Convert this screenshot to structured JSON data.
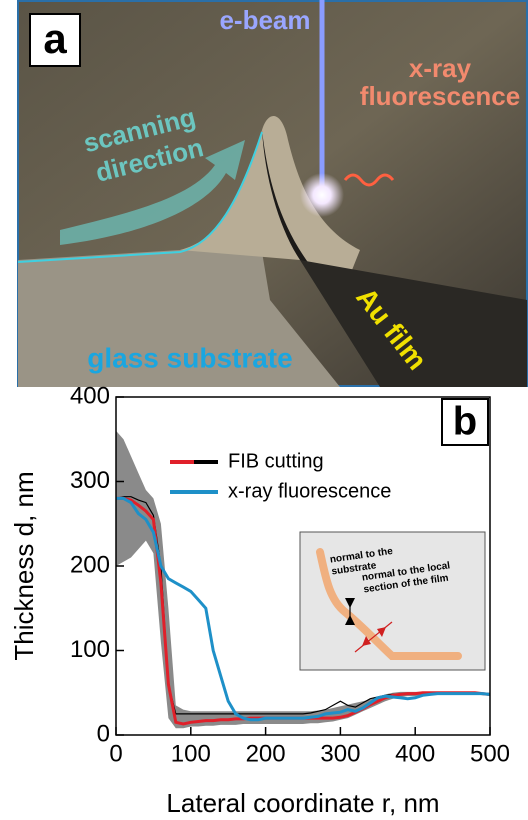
{
  "illustration": {
    "panel_label": "a",
    "beam_label": "e-beam",
    "fluorescence_label": [
      "x-ray",
      "fluorescence"
    ],
    "scan_label": [
      "scanning",
      "direction"
    ],
    "substrate_label": "glass substrate",
    "film_label": "Au film"
  },
  "chart_data": {
    "type": "line",
    "panel_label": "b",
    "x_label": "Lateral coordinate r, nm",
    "y_label": "Thickness d, nm",
    "xlim": [
      0,
      500
    ],
    "ylim": [
      0,
      400
    ],
    "xticks": [
      0,
      100,
      200,
      300,
      400,
      500
    ],
    "yticks": [
      0,
      100,
      200,
      300,
      400
    ],
    "x": [
      0,
      10,
      20,
      30,
      40,
      50,
      60,
      70,
      80,
      90,
      100,
      110,
      120,
      130,
      140,
      150,
      160,
      170,
      180,
      190,
      200,
      210,
      220,
      230,
      240,
      250,
      260,
      270,
      280,
      290,
      300,
      310,
      320,
      330,
      340,
      350,
      360,
      370,
      380,
      390,
      400,
      410,
      420,
      430,
      440,
      450,
      460,
      470,
      480,
      490,
      500
    ],
    "series": [
      {
        "name": "FIB cutting",
        "color": "#e0202a",
        "reference_color": "#000000",
        "band_color": "#8a8a8a",
        "values": [
          280,
          280,
          278,
          272,
          265,
          255,
          180,
          60,
          15,
          13,
          15,
          16,
          17,
          17,
          18,
          18,
          19,
          19,
          20,
          20,
          20,
          20,
          20,
          20,
          20,
          20,
          20,
          20,
          20,
          20,
          21,
          23,
          27,
          31,
          36,
          40,
          44,
          47,
          48,
          49,
          49,
          50,
          50,
          50,
          50,
          50,
          50,
          50,
          50,
          49,
          48
        ],
        "reference_values": [
          280,
          282,
          282,
          278,
          275,
          260,
          200,
          60,
          25,
          25,
          25,
          25,
          25,
          25,
          25,
          25,
          25,
          25,
          25,
          25,
          25,
          25,
          25,
          25,
          25,
          25,
          26,
          28,
          30,
          35,
          40,
          35,
          33,
          38,
          43,
          45,
          47,
          48,
          48,
          48,
          49,
          49,
          49,
          49,
          49,
          49,
          49,
          49,
          49,
          49,
          48
        ],
        "band_low": [
          200,
          205,
          210,
          220,
          230,
          215,
          110,
          20,
          8,
          8,
          10,
          10,
          11,
          11,
          12,
          12,
          12,
          13,
          13,
          13,
          13,
          13,
          13,
          13,
          13,
          13,
          14,
          14,
          15,
          16,
          18,
          20,
          24,
          28,
          32,
          36,
          40,
          43,
          45,
          46,
          46,
          47,
          48,
          48,
          48,
          48,
          48,
          48,
          48,
          47,
          46
        ],
        "band_high": [
          360,
          350,
          330,
          310,
          290,
          280,
          250,
          150,
          35,
          30,
          28,
          28,
          28,
          28,
          28,
          28,
          28,
          28,
          28,
          28,
          28,
          28,
          28,
          28,
          28,
          28,
          28,
          29,
          30,
          32,
          34,
          36,
          38,
          40,
          42,
          45,
          48,
          50,
          51,
          51,
          51,
          51,
          51,
          51,
          51,
          51,
          51,
          51,
          51,
          50,
          50
        ]
      },
      {
        "name": "x-ray fluorescence",
        "color": "#1e90c8",
        "values": [
          280,
          280,
          275,
          262,
          255,
          240,
          200,
          185,
          180,
          175,
          170,
          160,
          150,
          100,
          70,
          40,
          25,
          20,
          18,
          18,
          20,
          20,
          20,
          20,
          20,
          20,
          21,
          22,
          25,
          26,
          27,
          30,
          28,
          32,
          38,
          44,
          46,
          45,
          44,
          43,
          44,
          47,
          48,
          49,
          49,
          49,
          49,
          49,
          49,
          49,
          48
        ]
      }
    ],
    "legend": "upper-center",
    "inset": {
      "background": "#e6e6e6",
      "film_color": "#f0b080",
      "arrow_color": "#d02020",
      "labels": [
        [
          "normal to the",
          "substrate"
        ],
        [
          "normal to the local",
          "section of the film"
        ]
      ]
    }
  }
}
